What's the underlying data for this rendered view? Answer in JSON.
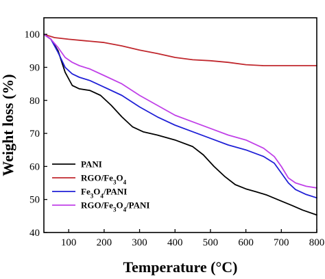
{
  "chart_data": {
    "type": "line",
    "title": "",
    "xlabel": "Temperature (°C)",
    "ylabel": "Weight loss (%)",
    "xlim": [
      30,
      800
    ],
    "ylim": [
      40,
      105
    ],
    "xticks": [
      100,
      200,
      300,
      400,
      500,
      600,
      700,
      800
    ],
    "yticks": [
      40,
      50,
      60,
      70,
      80,
      90,
      100
    ],
    "grid": false,
    "legend_position": "bottom-left",
    "series": [
      {
        "name": "PANI",
        "label_parts": [
          {
            "t": "PANI"
          }
        ],
        "color": "#000000",
        "points": [
          [
            30,
            100
          ],
          [
            50,
            98.5
          ],
          [
            70,
            95
          ],
          [
            90,
            88.5
          ],
          [
            110,
            84.5
          ],
          [
            130,
            83.5
          ],
          [
            160,
            83
          ],
          [
            190,
            81.5
          ],
          [
            220,
            78.5
          ],
          [
            250,
            75
          ],
          [
            280,
            72
          ],
          [
            310,
            70.5
          ],
          [
            350,
            69.5
          ],
          [
            400,
            68
          ],
          [
            450,
            66
          ],
          [
            480,
            63.5
          ],
          [
            510,
            60
          ],
          [
            540,
            57
          ],
          [
            570,
            54.5
          ],
          [
            600,
            53.2
          ],
          [
            630,
            52.3
          ],
          [
            660,
            51.3
          ],
          [
            700,
            49.5
          ],
          [
            730,
            48.2
          ],
          [
            760,
            46.8
          ],
          [
            800,
            45.3
          ]
        ]
      },
      {
        "name": "RGO/Fe3O4",
        "label_parts": [
          {
            "t": "RGO/Fe"
          },
          {
            "t": "3",
            "sub": true
          },
          {
            "t": "O"
          },
          {
            "t": "4",
            "sub": true
          }
        ],
        "color": "#c0272d",
        "points": [
          [
            30,
            100
          ],
          [
            60,
            99
          ],
          [
            100,
            98.5
          ],
          [
            150,
            98
          ],
          [
            200,
            97.5
          ],
          [
            250,
            96.5
          ],
          [
            300,
            95.2
          ],
          [
            350,
            94.2
          ],
          [
            400,
            93
          ],
          [
            450,
            92.3
          ],
          [
            500,
            92
          ],
          [
            550,
            91.5
          ],
          [
            600,
            90.8
          ],
          [
            650,
            90.5
          ],
          [
            700,
            90.5
          ],
          [
            750,
            90.5
          ],
          [
            800,
            90.5
          ]
        ]
      },
      {
        "name": "Fe3O4/PANI",
        "label_parts": [
          {
            "t": "Fe"
          },
          {
            "t": "3",
            "sub": true
          },
          {
            "t": "O"
          },
          {
            "t": "4",
            "sub": true
          },
          {
            "t": "/PANI"
          }
        ],
        "color": "#1f1fd6",
        "points": [
          [
            30,
            100
          ],
          [
            50,
            98.5
          ],
          [
            70,
            94.5
          ],
          [
            90,
            90
          ],
          [
            110,
            88
          ],
          [
            130,
            87
          ],
          [
            160,
            86
          ],
          [
            200,
            84
          ],
          [
            250,
            81.5
          ],
          [
            300,
            78
          ],
          [
            350,
            75
          ],
          [
            400,
            72.5
          ],
          [
            450,
            70.5
          ],
          [
            500,
            68.5
          ],
          [
            550,
            66.5
          ],
          [
            600,
            65
          ],
          [
            650,
            63
          ],
          [
            680,
            61
          ],
          [
            700,
            58
          ],
          [
            720,
            55
          ],
          [
            740,
            53
          ],
          [
            770,
            51.5
          ],
          [
            800,
            50.5
          ]
        ]
      },
      {
        "name": "RGO/Fe3O4/PANI",
        "label_parts": [
          {
            "t": "RGO/Fe"
          },
          {
            "t": "3",
            "sub": true
          },
          {
            "t": "O"
          },
          {
            "t": "4",
            "sub": true
          },
          {
            "t": "/PANI"
          }
        ],
        "color": "#c040e8",
        "points": [
          [
            30,
            100
          ],
          [
            50,
            98.5
          ],
          [
            70,
            96
          ],
          [
            90,
            93
          ],
          [
            110,
            91.5
          ],
          [
            130,
            90.5
          ],
          [
            160,
            89.5
          ],
          [
            200,
            87.5
          ],
          [
            250,
            85
          ],
          [
            300,
            81.5
          ],
          [
            350,
            78.5
          ],
          [
            400,
            75.5
          ],
          [
            450,
            73.5
          ],
          [
            500,
            71.5
          ],
          [
            550,
            69.5
          ],
          [
            600,
            68
          ],
          [
            650,
            65.5
          ],
          [
            680,
            63
          ],
          [
            700,
            60
          ],
          [
            720,
            56.5
          ],
          [
            740,
            55
          ],
          [
            770,
            54
          ],
          [
            800,
            53.5
          ]
        ]
      }
    ]
  }
}
